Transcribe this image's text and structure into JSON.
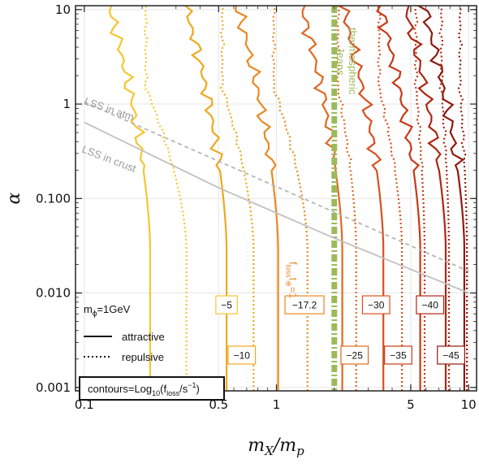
{
  "chart_data": {
    "type": "line",
    "title": "",
    "xlabel": "m_X/m_p",
    "ylabel": "α",
    "xscale": "log",
    "yscale": "log",
    "xlim": [
      0.09,
      11
    ],
    "ylim": [
      0.00092,
      11
    ],
    "grid": true,
    "x_ticks": [
      "0.1",
      "0.5",
      "1",
      "5",
      "10"
    ],
    "y_ticks": [
      "0.001",
      "0.010",
      "0.100",
      "1",
      "10"
    ],
    "series": [
      {
        "name": "−5",
        "color": "#f5c630",
        "boundary_x": [
          0.22,
          0.34
        ],
        "label_x": 0.55
      },
      {
        "name": "−10",
        "color": "#f0a820",
        "boundary_x": [
          0.55,
          0.76
        ],
        "label_x": 0.66
      },
      {
        "name": "−17.2",
        "color": "#ea8a22",
        "boundary_x": [
          1.02,
          1.45
        ],
        "label_x": 1.4
      },
      {
        "name": "−25",
        "color": "#e06a22",
        "boundary_x": [
          2.2,
          2.6
        ],
        "label_x": 2.55
      },
      {
        "name": "−30",
        "color": "#d9501e",
        "boundary_x": [
          3.6,
          4.5
        ],
        "label_x": 3.3
      },
      {
        "name": "−35",
        "color": "#c63a16",
        "boundary_x": [
          5.6,
          5.9
        ],
        "label_x": 4.3
      },
      {
        "name": "−40",
        "color": "#ad2712",
        "boundary_x": [
          7.6,
          7.9
        ],
        "label_x": 6.3
      },
      {
        "name": "−45",
        "color": "#8e1a10",
        "boundary_x": [
          9.5,
          9.8
        ],
        "label_x": 8.1
      }
    ],
    "lines": {
      "lss_atm": {
        "label": "LSS in atm",
        "x": [
          0.1,
          10
        ],
        "y": [
          1.05,
          0.017
        ],
        "style": "dashed",
        "color": "#b5b5b5"
      },
      "lss_crust": {
        "label": "LSS in crust",
        "x": [
          0.1,
          0.5,
          2,
          10
        ],
        "y": [
          0.64,
          0.13,
          0.038,
          0.01
        ],
        "style": "solid",
        "color": "#c0c0c0"
      },
      "jeans": {
        "label_line1": "thermospheric",
        "label_line2": "Jeans",
        "x": 2.0,
        "color": "#9cba5a"
      },
      "floss": {
        "label_main": "f",
        "label_sub1": "loss",
        "label_mid": "t",
        "label_sub2": "⊕",
        "label_end": "=1"
      }
    },
    "legend": {
      "title": "m",
      "title_sub": "ϕ",
      "title_end": "=1GeV",
      "solid_label": "attractive",
      "dotted_label": "repulsive",
      "placement": "bottom-left"
    },
    "contour_box": {
      "prefix": "contours=Log",
      "sub": "10",
      "mid": "(f",
      "sub2": "loss",
      "mid2": "/s",
      "sup": "−1",
      "end": ")"
    }
  }
}
